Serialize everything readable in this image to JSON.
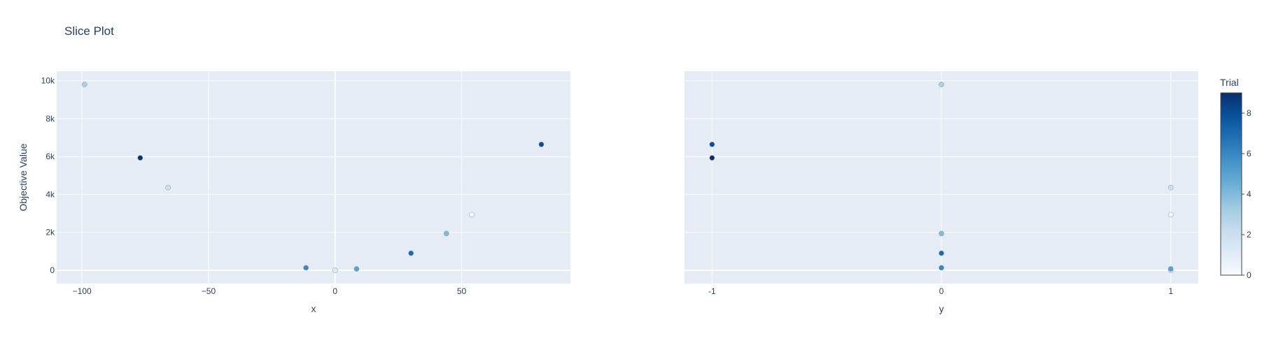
{
  "title": "Slice Plot",
  "colors": {
    "plot_bg": "#e5ecf6",
    "grid": "#ffffff",
    "text": "#2a3f5f",
    "marker_outline": "#9aa5b1",
    "colorscale": [
      "#f7fbff",
      "#deebf7",
      "#c6dbef",
      "#9ecae1",
      "#6baed6",
      "#4292c6",
      "#2171b5",
      "#08519c",
      "#08306b"
    ]
  },
  "chart_data": [
    {
      "type": "scatter",
      "xlabel": "x",
      "ylabel": "Objective Value",
      "xlim": [
        -110,
        93
      ],
      "ylim": [
        -700,
        10500
      ],
      "xticks": [
        -100,
        -50,
        0,
        50
      ],
      "xtick_labels": [
        "−100",
        "−50",
        "0",
        "50"
      ],
      "yticks": [
        0,
        2000,
        4000,
        6000,
        8000,
        10000
      ],
      "ytick_labels": [
        "0",
        "2k",
        "4k",
        "6k",
        "8k",
        "10k"
      ],
      "points": [
        {
          "trial": 0,
          "x": 54,
          "y": 2930
        },
        {
          "trial": 1,
          "x": 0,
          "y": 0
        },
        {
          "trial": 2,
          "x": -66,
          "y": 4360
        },
        {
          "trial": 3,
          "x": -99,
          "y": 9800
        },
        {
          "trial": 4,
          "x": 44,
          "y": 1940
        },
        {
          "trial": 5,
          "x": 8.5,
          "y": 72
        },
        {
          "trial": 6,
          "x": -11.5,
          "y": 132
        },
        {
          "trial": 7,
          "x": 30,
          "y": 900
        },
        {
          "trial": 8,
          "x": 81.5,
          "y": 6640
        },
        {
          "trial": 9,
          "x": -77,
          "y": 5930
        }
      ]
    },
    {
      "type": "scatter",
      "xlabel": "y",
      "ylabel": "",
      "xlim": [
        -1.12,
        1.12
      ],
      "ylim": [
        -700,
        10500
      ],
      "xticks": [
        -1,
        0,
        1
      ],
      "xtick_labels": [
        "-1",
        "0",
        "1"
      ],
      "points": [
        {
          "trial": 0,
          "x": 1,
          "y": 2930
        },
        {
          "trial": 1,
          "x": 1,
          "y": 0
        },
        {
          "trial": 2,
          "x": 1,
          "y": 4360
        },
        {
          "trial": 3,
          "x": 0,
          "y": 9800
        },
        {
          "trial": 4,
          "x": 0,
          "y": 1940
        },
        {
          "trial": 5,
          "x": 1,
          "y": 72
        },
        {
          "trial": 6,
          "x": 0,
          "y": 132
        },
        {
          "trial": 7,
          "x": 0,
          "y": 900
        },
        {
          "trial": 8,
          "x": -1,
          "y": 6640
        },
        {
          "trial": 9,
          "x": -1,
          "y": 5930
        }
      ]
    }
  ],
  "colorbar": {
    "title": "Trial",
    "range": [
      0,
      9
    ],
    "ticks": [
      0,
      2,
      4,
      6,
      8
    ],
    "tick_labels": [
      "0",
      "2",
      "4",
      "6",
      "8"
    ]
  }
}
